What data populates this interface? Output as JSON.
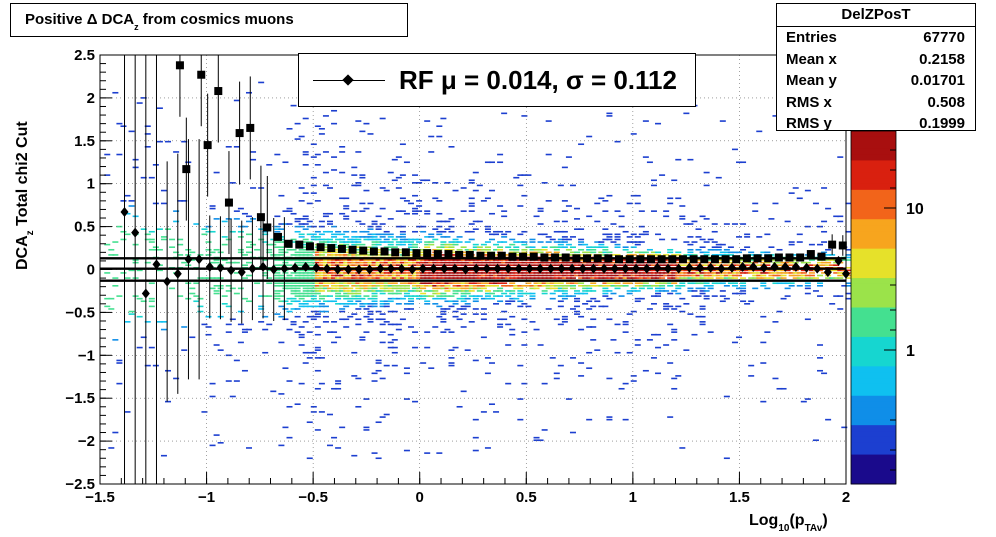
{
  "title": {
    "prefix": "Positive Δ DCA",
    "sub": "z",
    "suffix": " from cosmics muons"
  },
  "stats": {
    "name": "DelZPosT",
    "rows": [
      {
        "label": "Entries",
        "value": "67770"
      },
      {
        "label": "Mean x",
        "value": "0.2158"
      },
      {
        "label": "Mean y",
        "value": "0.01701"
      },
      {
        "label": "RMS x",
        "value": "0.508"
      },
      {
        "label": "RMS y",
        "value": "0.1999"
      }
    ]
  },
  "legend": {
    "text": "RF μ =  0.014, σ =   0.112"
  },
  "axes": {
    "ylabel_main": "DCA",
    "ylabel_sub": "z",
    "ylabel_rest": "  Total chi2 Cut",
    "xlabel_main": "Log",
    "xlabel_sub1": "10",
    "xlabel_mid": "(p",
    "xlabel_sub2": "TAv",
    "xlabel_end": ")"
  },
  "colorbar": {
    "labels": [
      "10",
      "1"
    ]
  },
  "chart_data": {
    "type": "heatmap",
    "xlim": [
      -1.5,
      2
    ],
    "ylim": [
      -2.5,
      2.5
    ],
    "xticks": [
      -1.5,
      -1,
      -0.5,
      0,
      0.5,
      1,
      1.5,
      2
    ],
    "xtick_labels": [
      "−1.5",
      "−1",
      "−0.5",
      "0",
      "0.5",
      "1",
      "1.5",
      "2"
    ],
    "yticks": [
      -2.5,
      -2,
      -1.5,
      -1,
      -0.5,
      0,
      0.5,
      1,
      1.5,
      2,
      2.5
    ],
    "ytick_labels": [
      "−2.5",
      "−2",
      "−1.5",
      "−1",
      "−0.5",
      "0",
      "0.5",
      "1",
      "1.5",
      "2",
      "2.5"
    ],
    "grid": true,
    "colorbar_scale": "log",
    "series": [
      {
        "marker": "square",
        "x": [
          -1.125,
          -1.095,
          -1.025,
          -0.995,
          -0.945,
          -0.895,
          -0.845,
          -0.795,
          -0.745,
          -0.715,
          -0.665,
          -0.615,
          -0.565,
          -0.515,
          -0.465,
          -0.415,
          -0.365,
          -0.315,
          -0.265,
          -0.215,
          -0.165,
          -0.115,
          -0.065,
          -0.015,
          0.035,
          0.085,
          0.135,
          0.185,
          0.235,
          0.285,
          0.335,
          0.385,
          0.435,
          0.485,
          0.535,
          0.585,
          0.635,
          0.685,
          0.735,
          0.785,
          0.835,
          0.885,
          0.935,
          0.985,
          1.035,
          1.085,
          1.135,
          1.185,
          1.235,
          1.285,
          1.335,
          1.385,
          1.435,
          1.485,
          1.535,
          1.585,
          1.635,
          1.685,
          1.735,
          1.785,
          1.835,
          1.885,
          1.935,
          1.985
        ],
        "y": [
          2.38,
          1.17,
          2.27,
          1.45,
          2.08,
          0.78,
          1.59,
          1.65,
          0.61,
          0.49,
          0.38,
          0.3,
          0.29,
          0.27,
          0.26,
          0.25,
          0.24,
          0.23,
          0.22,
          0.21,
          0.21,
          0.2,
          0.2,
          0.19,
          0.19,
          0.18,
          0.18,
          0.17,
          0.17,
          0.16,
          0.16,
          0.16,
          0.15,
          0.15,
          0.15,
          0.14,
          0.14,
          0.14,
          0.13,
          0.13,
          0.13,
          0.13,
          0.12,
          0.12,
          0.12,
          0.12,
          0.12,
          0.12,
          0.12,
          0.12,
          0.12,
          0.12,
          0.12,
          0.12,
          0.13,
          0.13,
          0.13,
          0.14,
          0.14,
          0.14,
          0.18,
          0.15,
          0.29,
          0.28
        ]
      },
      {
        "marker": "diamond",
        "x": [
          -1.385,
          -1.335,
          -1.285,
          -1.235,
          -1.185,
          -1.135,
          -1.085,
          -1.035,
          -0.985,
          -0.935,
          -0.885,
          -0.835,
          -0.785,
          -0.735,
          -0.685,
          -0.635,
          -0.585,
          -0.535,
          -0.485,
          -0.435,
          -0.385,
          -0.335,
          -0.285,
          -0.235,
          -0.185,
          -0.135,
          -0.085,
          -0.035,
          0.015,
          0.065,
          0.115,
          0.165,
          0.215,
          0.265,
          0.315,
          0.365,
          0.415,
          0.465,
          0.515,
          0.565,
          0.615,
          0.665,
          0.715,
          0.765,
          0.815,
          0.865,
          0.915,
          0.965,
          1.015,
          1.065,
          1.115,
          1.165,
          1.215,
          1.265,
          1.315,
          1.365,
          1.415,
          1.465,
          1.515,
          1.565,
          1.615,
          1.665,
          1.715,
          1.765,
          1.815,
          1.865,
          1.915,
          1.965,
          2.0
        ],
        "y": [
          0.67,
          0.43,
          -0.28,
          0.06,
          -0.14,
          -0.05,
          0.12,
          0.12,
          0.03,
          0.02,
          -0.01,
          -0.03,
          0.01,
          0.03,
          0.0,
          0.01,
          0.02,
          0.03,
          0.02,
          0.01,
          0.0,
          0.0,
          0.0,
          0.0,
          0.01,
          0.01,
          0.01,
          0.0,
          0.01,
          0.01,
          0.01,
          0.01,
          0.0,
          0.01,
          0.01,
          0.01,
          0.01,
          0.01,
          0.01,
          0.01,
          0.01,
          0.01,
          0.01,
          0.01,
          0.01,
          0.01,
          0.01,
          0.01,
          0.01,
          0.01,
          0.02,
          0.01,
          0.01,
          0.02,
          0.02,
          0.02,
          0.01,
          0.02,
          0.03,
          0.03,
          0.02,
          0.03,
          0.03,
          0.03,
          0.02,
          0.01,
          -0.03,
          0.1,
          -0.05
        ]
      }
    ],
    "lines": [
      0.13,
      0.01,
      -0.13
    ]
  }
}
